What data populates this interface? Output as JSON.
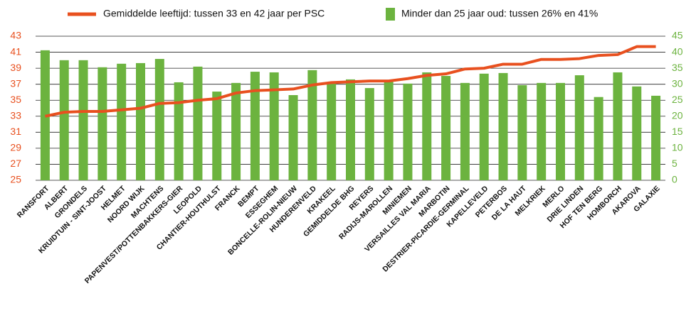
{
  "chart_data": {
    "type": "combo",
    "categories": [
      "RANSFORT",
      "ALBERT",
      "GRONDELS",
      "KRUIDTUIN - SINT-JOOST",
      "HELMET",
      "NOORD WIJK",
      "MACHTENS",
      "PAPENVEST/POTTENBAKKERS-GIER",
      "LEOPOLD",
      "CHANTIER-HOUTHULST",
      "FRANCK",
      "BEMPT",
      "ESSEGHEM",
      "BONCELLE-ROLIN-NIEUW",
      "HUNDERENVELD",
      "KRAKEEL",
      "GEMIDDELDE BHG",
      "REYERS",
      "RADIJS-MAROLLEN",
      "MINIEMEN",
      "VERSAILLES VAL MARIA",
      "MARBOTIN",
      "DESTRIER-PICARDIE-GERMINAL",
      "KAPELLEVELD",
      "PETERBOS",
      "DE LA HAUT",
      "MELKRIEK",
      "MERLO",
      "DRIE LINDEN",
      "HOF TEN BERG",
      "HOMBORCH",
      "AKAROVA",
      "GALAXIE"
    ],
    "series": [
      {
        "name": "Gemiddelde leeftijd: tussen 33 en 42 jaar per PSC",
        "type": "line",
        "color": "#e8501f",
        "axis": "y",
        "values": [
          33.0,
          33.5,
          33.6,
          33.6,
          33.8,
          34.0,
          34.6,
          34.7,
          35.0,
          35.2,
          35.9,
          36.2,
          36.3,
          36.4,
          36.9,
          37.2,
          37.3,
          37.4,
          37.4,
          37.7,
          38.1,
          38.3,
          38.9,
          39.0,
          39.5,
          39.5,
          40.1,
          40.1,
          40.2,
          40.6,
          40.7,
          41.7,
          41.7
        ]
      },
      {
        "name": "Minder dan 25 jaar oud: tussen 26% en 41%",
        "type": "bar",
        "color": "#6cb33f",
        "axis": "y2",
        "values": [
          40.6,
          37.5,
          37.5,
          35.3,
          36.4,
          36.6,
          37.9,
          30.6,
          35.5,
          27.7,
          30.4,
          33.9,
          33.7,
          26.6,
          34.4,
          30.6,
          31.5,
          28.8,
          31.3,
          30.2,
          33.7,
          32.6,
          30.4,
          33.3,
          33.5,
          29.7,
          30.4,
          30.4,
          32.8,
          26.0,
          33.7,
          29.3,
          26.4
        ]
      }
    ],
    "ylim": [
      25,
      43
    ],
    "yticks": [
      25,
      27,
      29,
      31,
      33,
      35,
      37,
      39,
      41,
      43
    ],
    "y2lim": [
      0,
      45
    ],
    "y2ticks": [
      0,
      5,
      10,
      15,
      20,
      25,
      30,
      35,
      40,
      45
    ],
    "grid": true,
    "legend": "top"
  }
}
